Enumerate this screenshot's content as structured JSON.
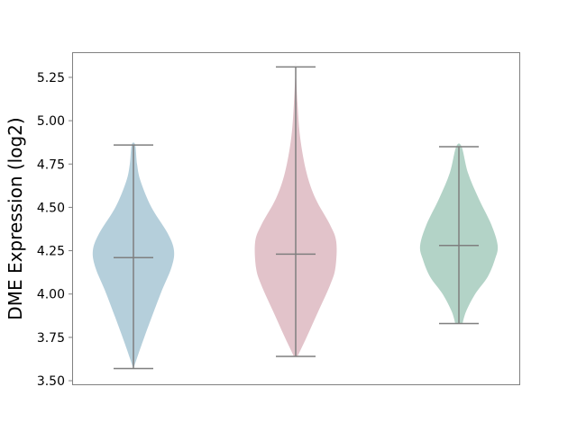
{
  "chart_data": {
    "type": "violin",
    "title": "",
    "xlabel": "",
    "ylabel": "DME Expression (log2)",
    "ylim": [
      3.48,
      5.4
    ],
    "yticks": [
      "3.50",
      "3.75",
      "4.00",
      "4.25",
      "4.50",
      "4.75",
      "5.00",
      "5.25"
    ],
    "grid": false,
    "series": [
      {
        "min": 3.57,
        "max": 4.86,
        "median": 4.21,
        "color": "#b5cfdb"
      },
      {
        "min": 3.64,
        "max": 5.31,
        "median": 4.23,
        "color": "#e2c3ca"
      },
      {
        "min": 3.83,
        "max": 4.85,
        "median": 4.28,
        "color": "#b3d3c7"
      }
    ],
    "line_color": "#7f7f7f"
  }
}
